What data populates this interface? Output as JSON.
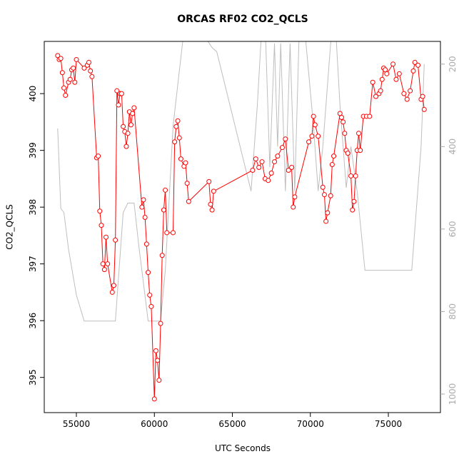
{
  "chart_data": {
    "type": "line",
    "title": "ORCAS RF02 CO2_QCLS",
    "xlabel": "UTC Seconds",
    "ylabel": "CO2_QCLS",
    "xlim": [
      52940,
      78340
    ],
    "xticks": [
      55000,
      60000,
      65000,
      70000,
      75000
    ],
    "ylim": [
      394.38,
      400.92
    ],
    "yticks": [
      395,
      396,
      397,
      398,
      399,
      400
    ],
    "y2lim": [
      1045,
      145
    ],
    "y2ticks": [
      200,
      400,
      600,
      800,
      1000
    ],
    "series": [
      {
        "color": "#ff0000",
        "markers": true,
        "x": [
          53800,
          53900,
          54000,
          54100,
          54200,
          54300,
          54500,
          54600,
          54700,
          54800,
          54900,
          55000,
          55500,
          55700,
          55800,
          55900,
          56000,
          56300,
          56400,
          56500,
          56600,
          56700,
          56800,
          56900,
          57000,
          57300,
          57400,
          57500,
          57600,
          57700,
          57800,
          57900,
          58000,
          58100,
          58200,
          58300,
          58400,
          58500,
          58600,
          58700,
          59200,
          59300,
          59400,
          59500,
          59600,
          59700,
          59800,
          60000,
          60100,
          60200,
          60300,
          60400,
          60500,
          60600,
          60700,
          60800,
          61200,
          61300,
          61400,
          61500,
          61600,
          61700,
          61900,
          62000,
          62100,
          62200,
          63500,
          63600,
          63700,
          63800,
          66300,
          66500,
          66700,
          66900,
          67100,
          67300,
          67500,
          67700,
          67900,
          68200,
          68400,
          68600,
          68800,
          68900,
          69000,
          69900,
          70100,
          70200,
          70300,
          70500,
          70800,
          70900,
          71000,
          71100,
          71300,
          71400,
          71500,
          71900,
          72000,
          72100,
          72200,
          72300,
          72400,
          72600,
          72700,
          72800,
          72900,
          73000,
          73100,
          73200,
          73400,
          73600,
          73800,
          74000,
          74200,
          74400,
          74500,
          74600,
          74700,
          74800,
          74900,
          75300,
          75500,
          75700,
          76000,
          76200,
          76400,
          76600,
          76700,
          76900,
          77100,
          77200,
          77300
        ],
        "values": [
          400.67,
          400.6,
          400.62,
          400.37,
          400.1,
          399.97,
          400.2,
          400.25,
          400.42,
          400.45,
          400.2,
          400.6,
          400.45,
          400.5,
          400.55,
          400.4,
          400.3,
          398.87,
          398.9,
          397.93,
          397.68,
          397.0,
          396.9,
          397.47,
          397.0,
          396.5,
          396.62,
          397.42,
          400.05,
          399.8,
          400.0,
          400.0,
          399.42,
          399.33,
          399.07,
          399.3,
          399.68,
          399.45,
          399.65,
          399.75,
          398.0,
          398.13,
          397.82,
          397.35,
          396.85,
          396.45,
          396.25,
          394.62,
          395.47,
          395.3,
          394.95,
          395.95,
          397.15,
          397.95,
          398.3,
          397.55,
          397.55,
          399.15,
          399.42,
          399.52,
          399.22,
          398.85,
          398.72,
          398.78,
          398.42,
          398.1,
          398.45,
          398.05,
          397.95,
          398.28,
          398.65,
          398.85,
          398.7,
          398.8,
          398.5,
          398.47,
          398.6,
          398.8,
          398.9,
          399.05,
          399.2,
          398.65,
          398.7,
          398.0,
          398.18,
          399.15,
          399.25,
          399.6,
          399.45,
          399.25,
          398.35,
          398.22,
          397.75,
          397.9,
          398.2,
          398.75,
          398.9,
          399.65,
          399.58,
          399.5,
          399.3,
          399.0,
          398.95,
          398.55,
          397.95,
          398.1,
          398.55,
          399.0,
          399.3,
          399.0,
          399.6,
          399.6,
          399.6,
          400.2,
          399.95,
          400.0,
          400.05,
          400.25,
          400.45,
          400.42,
          400.35,
          400.52,
          400.25,
          400.35,
          400.0,
          399.9,
          400.05,
          400.4,
          400.55,
          400.5,
          399.9,
          399.95,
          399.72
        ]
      },
      {
        "color": "#bebebe",
        "axis": "y2",
        "markers": false,
        "x": [
          53800,
          54000,
          54200,
          54500,
          55000,
          55500,
          57500,
          58000,
          58300,
          58700,
          59000,
          59600,
          60400,
          60700,
          61200,
          61800,
          62000,
          63000,
          63700,
          64000,
          66200,
          66600,
          66900,
          67100,
          67400,
          67700,
          67900,
          68100,
          68400,
          68700,
          69000,
          69300,
          69600,
          70200,
          70500,
          70800,
          71300,
          71600,
          71900,
          72300,
          72600,
          73000,
          73500,
          76500,
          77100,
          77300
        ],
        "values": [
          356,
          550,
          560,
          650,
          760,
          823,
          823,
          560,
          537,
          537,
          640,
          823,
          823,
          700,
          350,
          150,
          100,
          120,
          160,
          170,
          508,
          300,
          100,
          100,
          450,
          150,
          400,
          150,
          508,
          150,
          508,
          100,
          100,
          350,
          508,
          400,
          150,
          100,
          300,
          500,
          400,
          508,
          700,
          700,
          400,
          200
        ]
      }
    ]
  }
}
